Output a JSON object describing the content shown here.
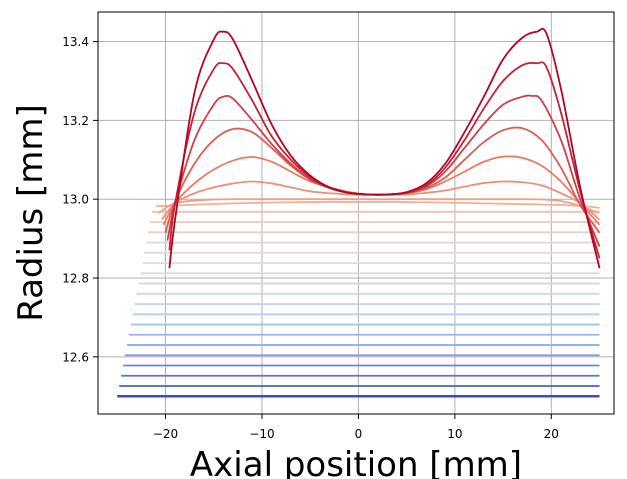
{
  "chart_data": {
    "type": "line",
    "title": "",
    "xlabel": "Axial position [mm]",
    "ylabel": "Radius [mm]",
    "xlim": [
      -27,
      26.5
    ],
    "ylim": [
      12.455,
      13.475
    ],
    "xticks": [
      -20,
      -10,
      0,
      10,
      20
    ],
    "xtick_labels": [
      "−20",
      "−10",
      "0",
      "10",
      "20"
    ],
    "yticks": [
      12.6,
      12.8,
      13.0,
      13.2,
      13.4
    ],
    "ytick_labels": [
      "12.6",
      "12.8",
      "13.0",
      "13.2",
      "13.4"
    ],
    "grid": true,
    "legend": "none",
    "colormap": [
      "#3b4cc0",
      "#7b9ff9",
      "#c0d4f5",
      "#dddddd",
      "#f2cbb7",
      "#ee8468",
      "#b40426"
    ],
    "series": [
      {
        "x": [
          -25.0,
          25.0
        ],
        "y": [
          12.5,
          12.5
        ]
      },
      {
        "x": [
          -24.8,
          25.0
        ],
        "y": [
          12.526,
          12.526
        ]
      },
      {
        "x": [
          -24.6,
          25.0
        ],
        "y": [
          12.552,
          12.552
        ]
      },
      {
        "x": [
          -24.4,
          25.0
        ],
        "y": [
          12.578,
          12.578
        ]
      },
      {
        "x": [
          -24.2,
          25.0
        ],
        "y": [
          12.604,
          12.604
        ]
      },
      {
        "x": [
          -24.0,
          25.0
        ],
        "y": [
          12.63,
          12.63
        ]
      },
      {
        "x": [
          -23.8,
          25.0
        ],
        "y": [
          12.656,
          12.656
        ]
      },
      {
        "x": [
          -23.6,
          25.0
        ],
        "y": [
          12.682,
          12.682
        ]
      },
      {
        "x": [
          -23.4,
          25.0
        ],
        "y": [
          12.708,
          12.708
        ]
      },
      {
        "x": [
          -23.2,
          25.0
        ],
        "y": [
          12.734,
          12.734
        ]
      },
      {
        "x": [
          -23.0,
          25.0
        ],
        "y": [
          12.76,
          12.76
        ]
      },
      {
        "x": [
          -22.8,
          25.0
        ],
        "y": [
          12.786,
          12.786
        ]
      },
      {
        "x": [
          -22.6,
          25.0
        ],
        "y": [
          12.812,
          12.812
        ]
      },
      {
        "x": [
          -22.4,
          25.0
        ],
        "y": [
          12.838,
          12.838
        ]
      },
      {
        "x": [
          -22.2,
          25.0
        ],
        "y": [
          12.864,
          12.864
        ]
      },
      {
        "x": [
          -22.0,
          25.0
        ],
        "y": [
          12.89,
          12.89
        ]
      },
      {
        "x": [
          -21.8,
          25.0
        ],
        "y": [
          12.916,
          12.916
        ]
      },
      {
        "x": [
          -21.6,
          25.0
        ],
        "y": [
          12.942,
          12.942
        ]
      },
      {
        "x": [
          -21.4,
          25.0
        ],
        "y": [
          12.968,
          12.968
        ]
      },
      {
        "x": [
          -21.0,
          -19.0,
          -16.0,
          -12.0,
          -8.0,
          -4.0,
          0.0,
          4.0,
          8.0,
          12.0,
          16.0,
          20.0,
          23.0,
          25.0
        ],
        "y": [
          12.982,
          12.984,
          12.987,
          12.99,
          12.992,
          12.993,
          12.993,
          12.993,
          12.992,
          12.99,
          12.988,
          12.986,
          12.983,
          12.978
        ]
      },
      {
        "x": [
          -20.7,
          -19.0,
          -16.0,
          -13.0,
          -10.0,
          -7.0,
          -4.0,
          -1.0,
          2.0,
          5.0,
          8.0,
          11.0,
          14.0,
          17.0,
          20.0,
          22.0,
          25.0
        ],
        "y": [
          12.965,
          12.99,
          12.998,
          13.0,
          13.0,
          13.0,
          13.0,
          13.0,
          13.0,
          13.0,
          13.0,
          13.0,
          13.0,
          13.0,
          12.998,
          12.99,
          12.965
        ]
      },
      {
        "x": [
          -20.4,
          -19.0,
          -17.0,
          -15.0,
          -13.0,
          -11.0,
          -9.0,
          -7.0,
          -5.0,
          -3.0,
          -1.0,
          1.0,
          3.0,
          5.0,
          7.0,
          9.0,
          11.0,
          13.0,
          15.0,
          17.0,
          19.0,
          21.0,
          23.0,
          25.0
        ],
        "y": [
          12.948,
          12.99,
          13.015,
          13.03,
          13.04,
          13.045,
          13.04,
          13.03,
          13.02,
          13.015,
          13.012,
          13.011,
          13.011,
          13.012,
          13.016,
          13.022,
          13.032,
          13.041,
          13.045,
          13.043,
          13.035,
          13.015,
          12.99,
          12.948
        ]
      },
      {
        "x": [
          -20.2,
          -19.0,
          -17.0,
          -15.0,
          -13.0,
          -11.0,
          -9.0,
          -7.0,
          -5.0,
          -3.0,
          -1.0,
          1.0,
          3.0,
          5.0,
          7.0,
          9.0,
          11.0,
          13.0,
          15.0,
          17.0,
          19.0,
          21.0,
          23.0,
          25.0
        ],
        "y": [
          12.935,
          12.99,
          13.04,
          13.075,
          13.098,
          13.107,
          13.095,
          13.07,
          13.045,
          13.03,
          13.018,
          13.012,
          13.012,
          13.015,
          13.025,
          13.045,
          13.07,
          13.095,
          13.108,
          13.105,
          13.085,
          13.045,
          12.99,
          12.935
        ]
      },
      {
        "x": [
          -20.0,
          -19.0,
          -17.0,
          -15.0,
          -13.0,
          -11.0,
          -9.0,
          -7.0,
          -5.0,
          -3.0,
          -1.0,
          1.0,
          3.0,
          5.0,
          7.0,
          9.0,
          11.0,
          13.0,
          15.0,
          17.0,
          19.0,
          21.0,
          23.0,
          25.0
        ],
        "y": [
          12.915,
          12.995,
          13.09,
          13.15,
          13.178,
          13.17,
          13.13,
          13.085,
          13.05,
          13.03,
          13.018,
          13.012,
          13.012,
          13.015,
          13.028,
          13.055,
          13.1,
          13.145,
          13.175,
          13.18,
          13.15,
          13.08,
          12.985,
          12.915
        ]
      },
      {
        "x": [
          -19.8,
          -19.0,
          -17.0,
          -15.0,
          -14.0,
          -13.0,
          -11.0,
          -9.0,
          -7.0,
          -5.0,
          -3.0,
          -1.0,
          1.0,
          3.0,
          5.0,
          7.0,
          9.0,
          11.0,
          13.0,
          15.0,
          17.0,
          18.0,
          19.0,
          21.0,
          23.0,
          25.0
        ],
        "y": [
          12.895,
          12.99,
          13.15,
          13.24,
          13.26,
          13.255,
          13.2,
          13.14,
          13.09,
          13.05,
          13.028,
          13.016,
          13.012,
          13.012,
          13.016,
          13.032,
          13.07,
          13.13,
          13.19,
          13.24,
          13.26,
          13.262,
          13.25,
          13.15,
          13.0,
          12.88
        ]
      },
      {
        "x": [
          -19.6,
          -19.0,
          -17.0,
          -15.0,
          -14.0,
          -13.0,
          -11.0,
          -9.0,
          -7.0,
          -5.0,
          -3.0,
          -1.0,
          1.0,
          3.0,
          5.0,
          7.0,
          9.0,
          11.0,
          13.0,
          15.0,
          17.0,
          18.5,
          19.5,
          21.0,
          23.0,
          25.0
        ],
        "y": [
          12.87,
          12.99,
          13.22,
          13.33,
          13.345,
          13.33,
          13.25,
          13.16,
          13.1,
          13.055,
          13.03,
          13.016,
          13.012,
          13.012,
          13.017,
          13.035,
          13.08,
          13.15,
          13.23,
          13.3,
          13.34,
          13.345,
          13.335,
          13.22,
          13.02,
          12.85
        ]
      },
      {
        "x": [
          -19.6,
          -19.0,
          -17.0,
          -15.0,
          -14.0,
          -13.0,
          -11.0,
          -9.0,
          -7.0,
          -5.0,
          -3.0,
          -1.0,
          1.0,
          3.0,
          5.0,
          7.0,
          9.0,
          11.0,
          13.0,
          15.0,
          17.0,
          18.5,
          19.5,
          21.0,
          23.0,
          25.0
        ],
        "y": [
          12.825,
          12.95,
          13.27,
          13.405,
          13.425,
          13.405,
          13.3,
          13.19,
          13.11,
          13.06,
          13.03,
          13.016,
          13.012,
          13.012,
          13.018,
          13.04,
          13.09,
          13.17,
          13.26,
          13.355,
          13.41,
          13.425,
          13.42,
          13.28,
          13.03,
          12.825
        ]
      }
    ]
  }
}
